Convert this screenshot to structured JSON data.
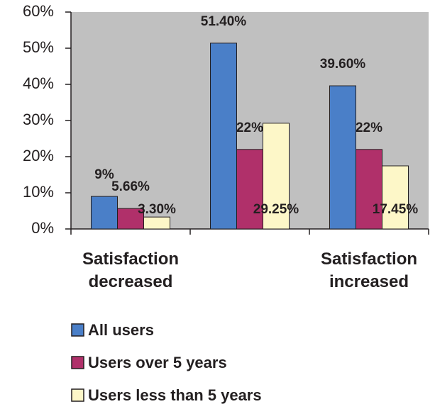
{
  "chart_data": {
    "type": "bar",
    "categories": [
      "Satisfaction decreased",
      null,
      "Satisfaction increased"
    ],
    "series": [
      {
        "name": "All users",
        "color": "#4a7fc8",
        "values": [
          9,
          51.4,
          39.6
        ],
        "value_labels": [
          "9%",
          "51.40%",
          "39.60%"
        ]
      },
      {
        "name": "Users over 5 years",
        "color": "#b0306a",
        "values": [
          5.66,
          22,
          22
        ],
        "value_labels": [
          "5.66%",
          "22%",
          "22%"
        ]
      },
      {
        "name": "Users less than 5 years",
        "color": "#fdf7c8",
        "values": [
          3.3,
          29.25,
          17.45
        ],
        "value_labels": [
          "3.30%",
          "29.25%",
          "17.45%"
        ]
      }
    ],
    "ylim": [
      0,
      60
    ],
    "yticks": [
      {
        "value": 0,
        "label": "0%"
      },
      {
        "value": 10,
        "label": "10%"
      },
      {
        "value": 20,
        "label": "20%"
      },
      {
        "value": 30,
        "label": "30%"
      },
      {
        "value": 40,
        "label": "40%"
      },
      {
        "value": 50,
        "label": "50%"
      },
      {
        "value": 60,
        "label": "60%"
      }
    ],
    "legend": "bottom"
  }
}
